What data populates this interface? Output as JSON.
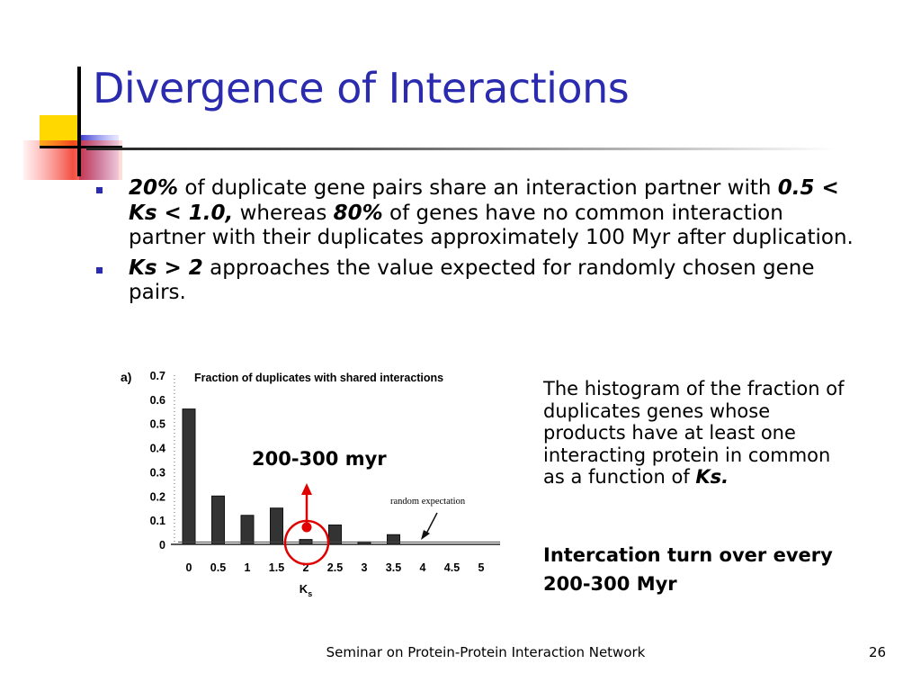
{
  "slide": {
    "title": "Divergence of Interactions",
    "bullets": [
      {
        "parts": [
          {
            "text": "20%",
            "style": "bold-italic"
          },
          {
            "text": " of duplicate gene pairs share an interaction partner with ",
            "style": "normal"
          },
          {
            "text": "0.5 < Ks < 1.0,",
            "style": "bold-italic"
          },
          {
            "text": " whereas ",
            "style": "normal"
          },
          {
            "text": "80%",
            "style": "bold-italic"
          },
          {
            "text": " of genes have no common interaction partner with their duplicates approximately 100 Myr after duplication.",
            "style": "normal"
          }
        ]
      },
      {
        "parts": [
          {
            "text": "Ks > 2",
            "style": "bold-italic"
          },
          {
            "text": "  approaches the value expected for randomly chosen gene pairs.",
            "style": "normal"
          }
        ]
      }
    ],
    "annotation_label": "200-300 myr",
    "side_note": {
      "text": "The histogram of the fraction of duplicates genes whose products have at least one interacting protein in common as a function of ",
      "emphasis": "Ks."
    },
    "conclusion": "Intercation turn over every 200-300 Myr",
    "footer": "Seminar on Protein-Protein Interaction Network",
    "page_number": "26",
    "colors": {
      "title": "#2b2bb0",
      "bullet": "#2b2bb0",
      "highlight": "#e00000",
      "bars": "#333333",
      "deco_yellow": "#ffd800",
      "deco_blue": "#4848d8",
      "deco_red": "#f03020"
    }
  },
  "chart_data": {
    "type": "bar",
    "panel_label": "a)",
    "title": "Fraction of duplicates with shared interactions",
    "xlabel": "Ks",
    "categories": [
      "0",
      "0.5",
      "1",
      "1.5",
      "2",
      "2.5",
      "3",
      "3.5",
      "4",
      "4.5",
      "5"
    ],
    "values": [
      0.56,
      0.2,
      0.12,
      0.15,
      0.02,
      0.08,
      0.01,
      0.04,
      0,
      0,
      0
    ],
    "y_ticks": [
      "0",
      "0.1",
      "0.2",
      "0.3",
      "0.4",
      "0.5",
      "0.6",
      "0.7"
    ],
    "ylim": [
      0,
      0.7
    ],
    "random_expectation": 0.01,
    "random_label": "random expectation",
    "highlight_category": "2"
  }
}
